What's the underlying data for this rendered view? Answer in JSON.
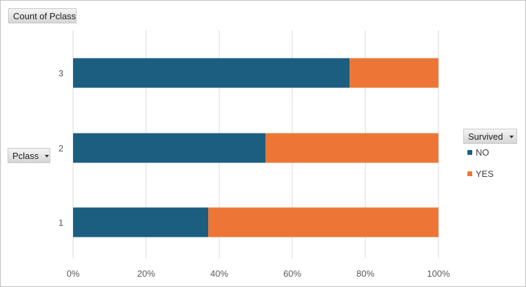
{
  "field_buttons": {
    "values_field": "Count of Pclass",
    "axis_field": "Pclass",
    "legend_field": "Survived"
  },
  "colors": {
    "NO": "#1b5e80",
    "YES": "#ed7636",
    "gridline": "#d9d9d9",
    "axis_text": "#595959"
  },
  "icons": {
    "dropdown": "chevron-down-icon"
  },
  "chart_data": {
    "type": "bar",
    "orientation": "horizontal",
    "stacked": "percent",
    "categories": [
      "1",
      "2",
      "3"
    ],
    "series": [
      {
        "name": "NO",
        "values": [
          0.37,
          0.527,
          0.757
        ]
      },
      {
        "name": "YES",
        "values": [
          0.63,
          0.473,
          0.243
        ]
      }
    ],
    "x_ticks": [
      "0%",
      "20%",
      "40%",
      "60%",
      "80%",
      "100%"
    ],
    "xlim": [
      0,
      1
    ],
    "grid": "vertical",
    "legend_title": "Survived",
    "legend_placement": "right",
    "title": "",
    "xlabel": "",
    "ylabel": "Pclass"
  }
}
